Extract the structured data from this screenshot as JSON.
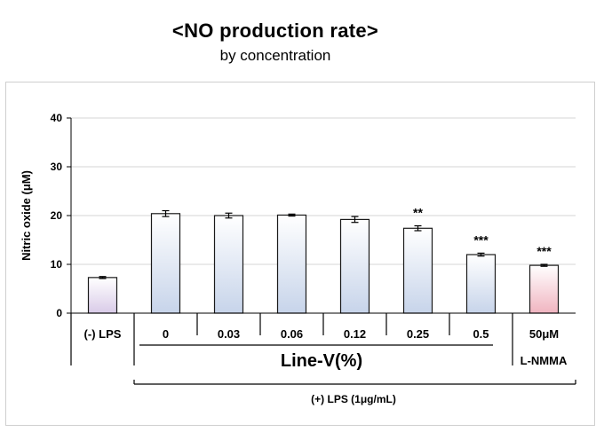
{
  "chart_data": {
    "type": "bar",
    "title": "<NO production rate>",
    "subtitle": "by concentration",
    "ylabel": "Nitric oxide (μM)",
    "ylim": [
      0,
      40
    ],
    "yticks": [
      "0",
      "10",
      "20",
      "30",
      "40"
    ],
    "grid": true,
    "categories": [
      "(-) LPS",
      "0",
      "0.03",
      "0.06",
      "0.12",
      "0.25",
      "0.5",
      "50μM"
    ],
    "values": [
      7.3,
      20.4,
      20.0,
      20.1,
      19.2,
      17.4,
      12.0,
      9.8
    ],
    "errors": [
      0.2,
      0.6,
      0.5,
      0.2,
      0.6,
      0.5,
      0.3,
      0.2
    ],
    "significance": [
      "",
      "",
      "",
      "",
      "",
      "**",
      "***",
      "***"
    ],
    "bar_colors": [
      "#d9cbe8",
      "#c7d4ea",
      "#c7d4ea",
      "#c7d4ea",
      "#c7d4ea",
      "#c7d4ea",
      "#c7d4ea",
      "#f0b4c0"
    ],
    "group_label": "Line-V(%)",
    "control_label": "L-NMMA",
    "lps_label": "(+) LPS (1μg/mL)"
  }
}
